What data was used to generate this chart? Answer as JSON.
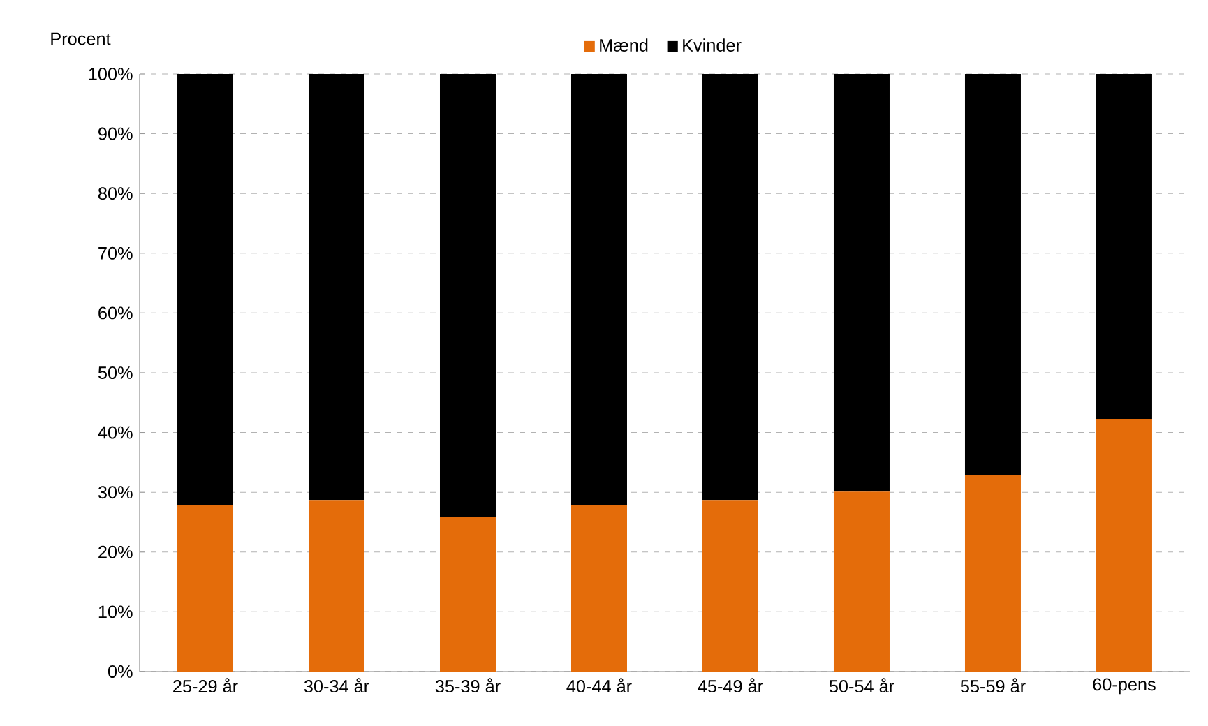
{
  "chart_data": {
    "type": "bar",
    "stacked": true,
    "ylabel": "Procent",
    "categories": [
      "25-29 år",
      "30-34 år",
      "35-39 år",
      "40-44 år",
      "45-49 år",
      "50-54 år",
      "55-59 år",
      "60-pens"
    ],
    "series": [
      {
        "name": "Mænd",
        "color": "#e46c0a",
        "values": [
          27.8,
          28.7,
          25.9,
          27.8,
          28.7,
          30.1,
          32.9,
          42.3
        ]
      },
      {
        "name": "Kvinder",
        "color": "#000000",
        "values": [
          72.2,
          71.3,
          74.1,
          72.2,
          71.3,
          69.9,
          67.1,
          57.7
        ]
      }
    ],
    "ylim": [
      0,
      100
    ],
    "yticks": [
      {
        "value": 0,
        "label": "0%"
      },
      {
        "value": 10,
        "label": "10%"
      },
      {
        "value": 20,
        "label": "20%"
      },
      {
        "value": 30,
        "label": "30%"
      },
      {
        "value": 40,
        "label": "40%"
      },
      {
        "value": 50,
        "label": "50%"
      },
      {
        "value": 60,
        "label": "60%"
      },
      {
        "value": 70,
        "label": "70%"
      },
      {
        "value": 80,
        "label": "80%"
      },
      {
        "value": 90,
        "label": "90%"
      },
      {
        "value": 100,
        "label": "100%"
      }
    ],
    "grid": "y",
    "legend": "top"
  }
}
